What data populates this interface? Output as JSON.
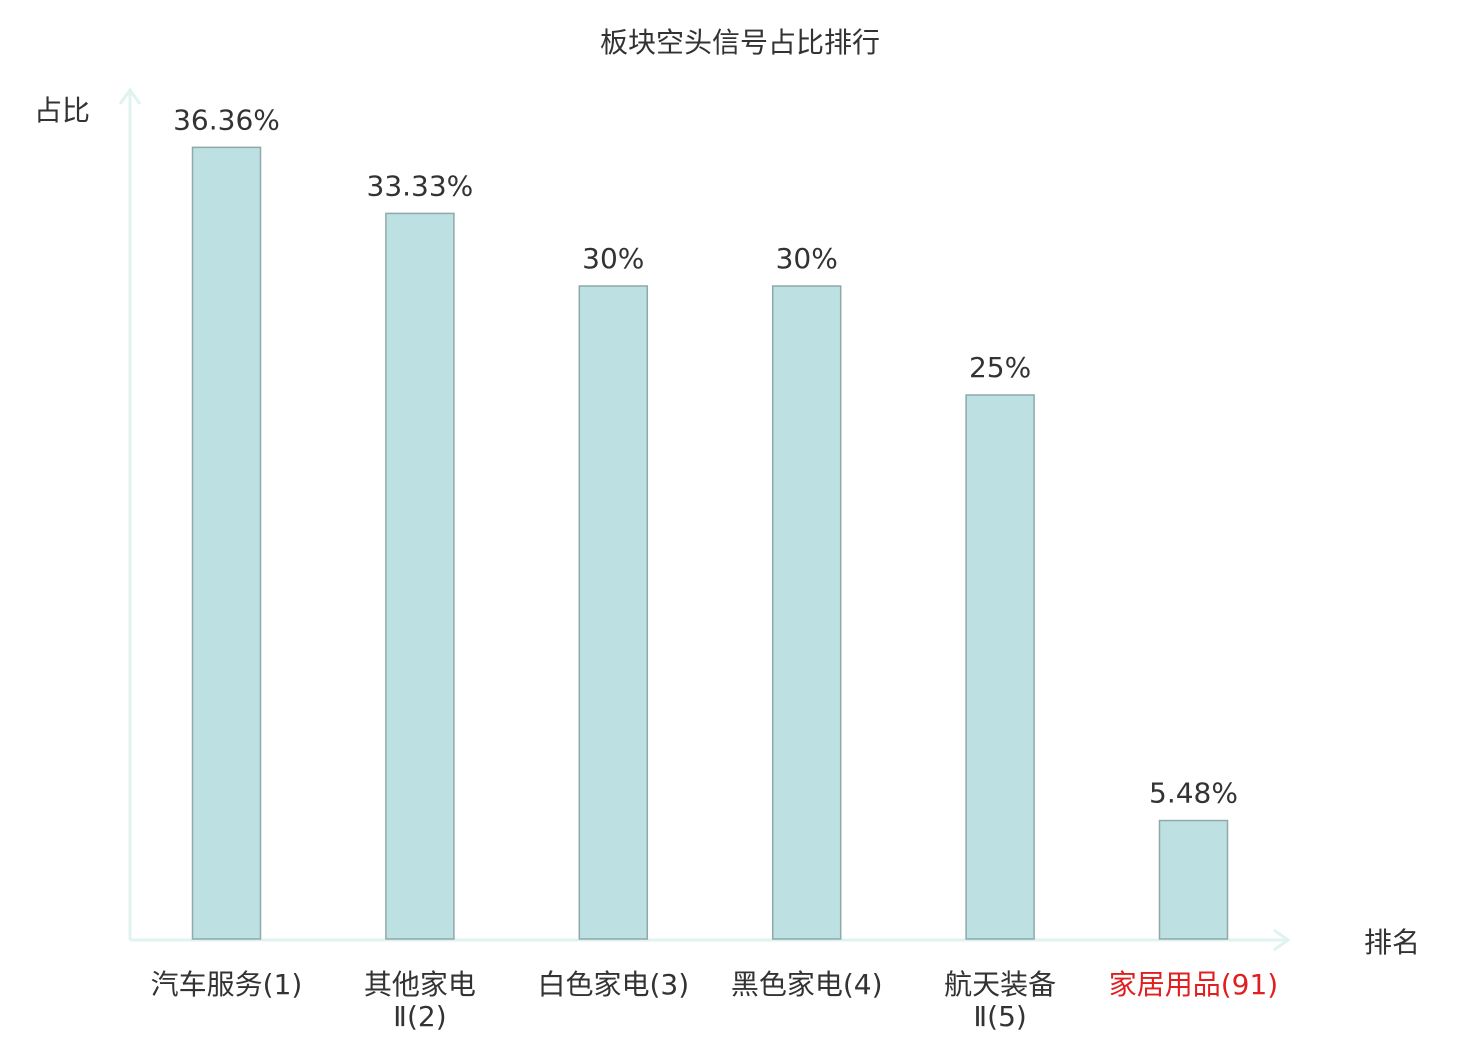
{
  "chart_data": {
    "type": "bar",
    "title": "板块空头信号占比排行",
    "ylabel": "占比",
    "xlabel": "排名",
    "ylim": [
      0,
      40
    ],
    "grid": false,
    "categories": [
      {
        "lines": [
          "汽车服务(1)"
        ],
        "highlight": false
      },
      {
        "lines": [
          "其他家电",
          "Ⅱ(2)"
        ],
        "highlight": false
      },
      {
        "lines": [
          "白色家电(3)"
        ],
        "highlight": false
      },
      {
        "lines": [
          "黑色家电(4)"
        ],
        "highlight": false
      },
      {
        "lines": [
          "航天装备",
          "Ⅱ(5)"
        ],
        "highlight": false
      },
      {
        "lines": [
          "家居用品(91)"
        ],
        "highlight": true
      }
    ],
    "values": [
      36.36,
      33.33,
      30,
      30,
      25,
      5.48
    ],
    "value_labels": [
      "36.36%",
      "33.33%",
      "30%",
      "30%",
      "25%",
      "5.48%"
    ]
  },
  "colors": {
    "bar_fill": "#bde0e3",
    "bar_stroke": "#8fa9aa",
    "axis": "#e0f3f1",
    "text": "#333333",
    "highlight_text": "#e02020"
  }
}
